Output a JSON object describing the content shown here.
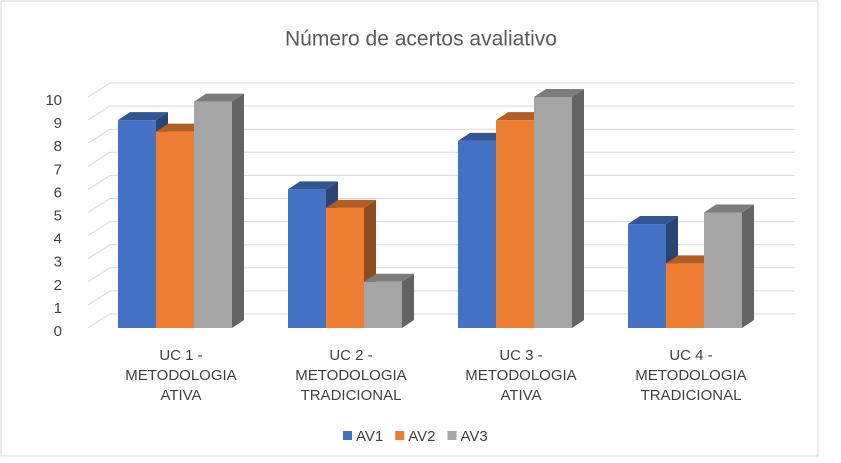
{
  "chart_data": {
    "type": "bar3d",
    "title": "Número de acertos avaliativo",
    "categories": [
      "UC 1 -\nMETODOLOGIA\nATIVA",
      "UC 2 -\nMETODOLOGIA\nTRADICIONAL",
      "UC 3 -\nMETODOLOGIA\nATIVA",
      "UC 4 -\nMETODOLOGIA\nTRADICIONAL"
    ],
    "series": [
      {
        "name": "AV1",
        "color": "#4472c4",
        "values": [
          9,
          6,
          8.1,
          4.5
        ]
      },
      {
        "name": "AV2",
        "color": "#ed7d31",
        "values": [
          8.5,
          5.2,
          9,
          2.8
        ]
      },
      {
        "name": "AV3",
        "color": "#a5a5a5",
        "values": [
          9.8,
          2,
          10,
          5
        ]
      }
    ],
    "ylim": [
      0,
      10
    ],
    "yticks": [
      0,
      1,
      2,
      3,
      4,
      5,
      6,
      7,
      8,
      9,
      10
    ],
    "grid": true,
    "legend": "bottom"
  }
}
